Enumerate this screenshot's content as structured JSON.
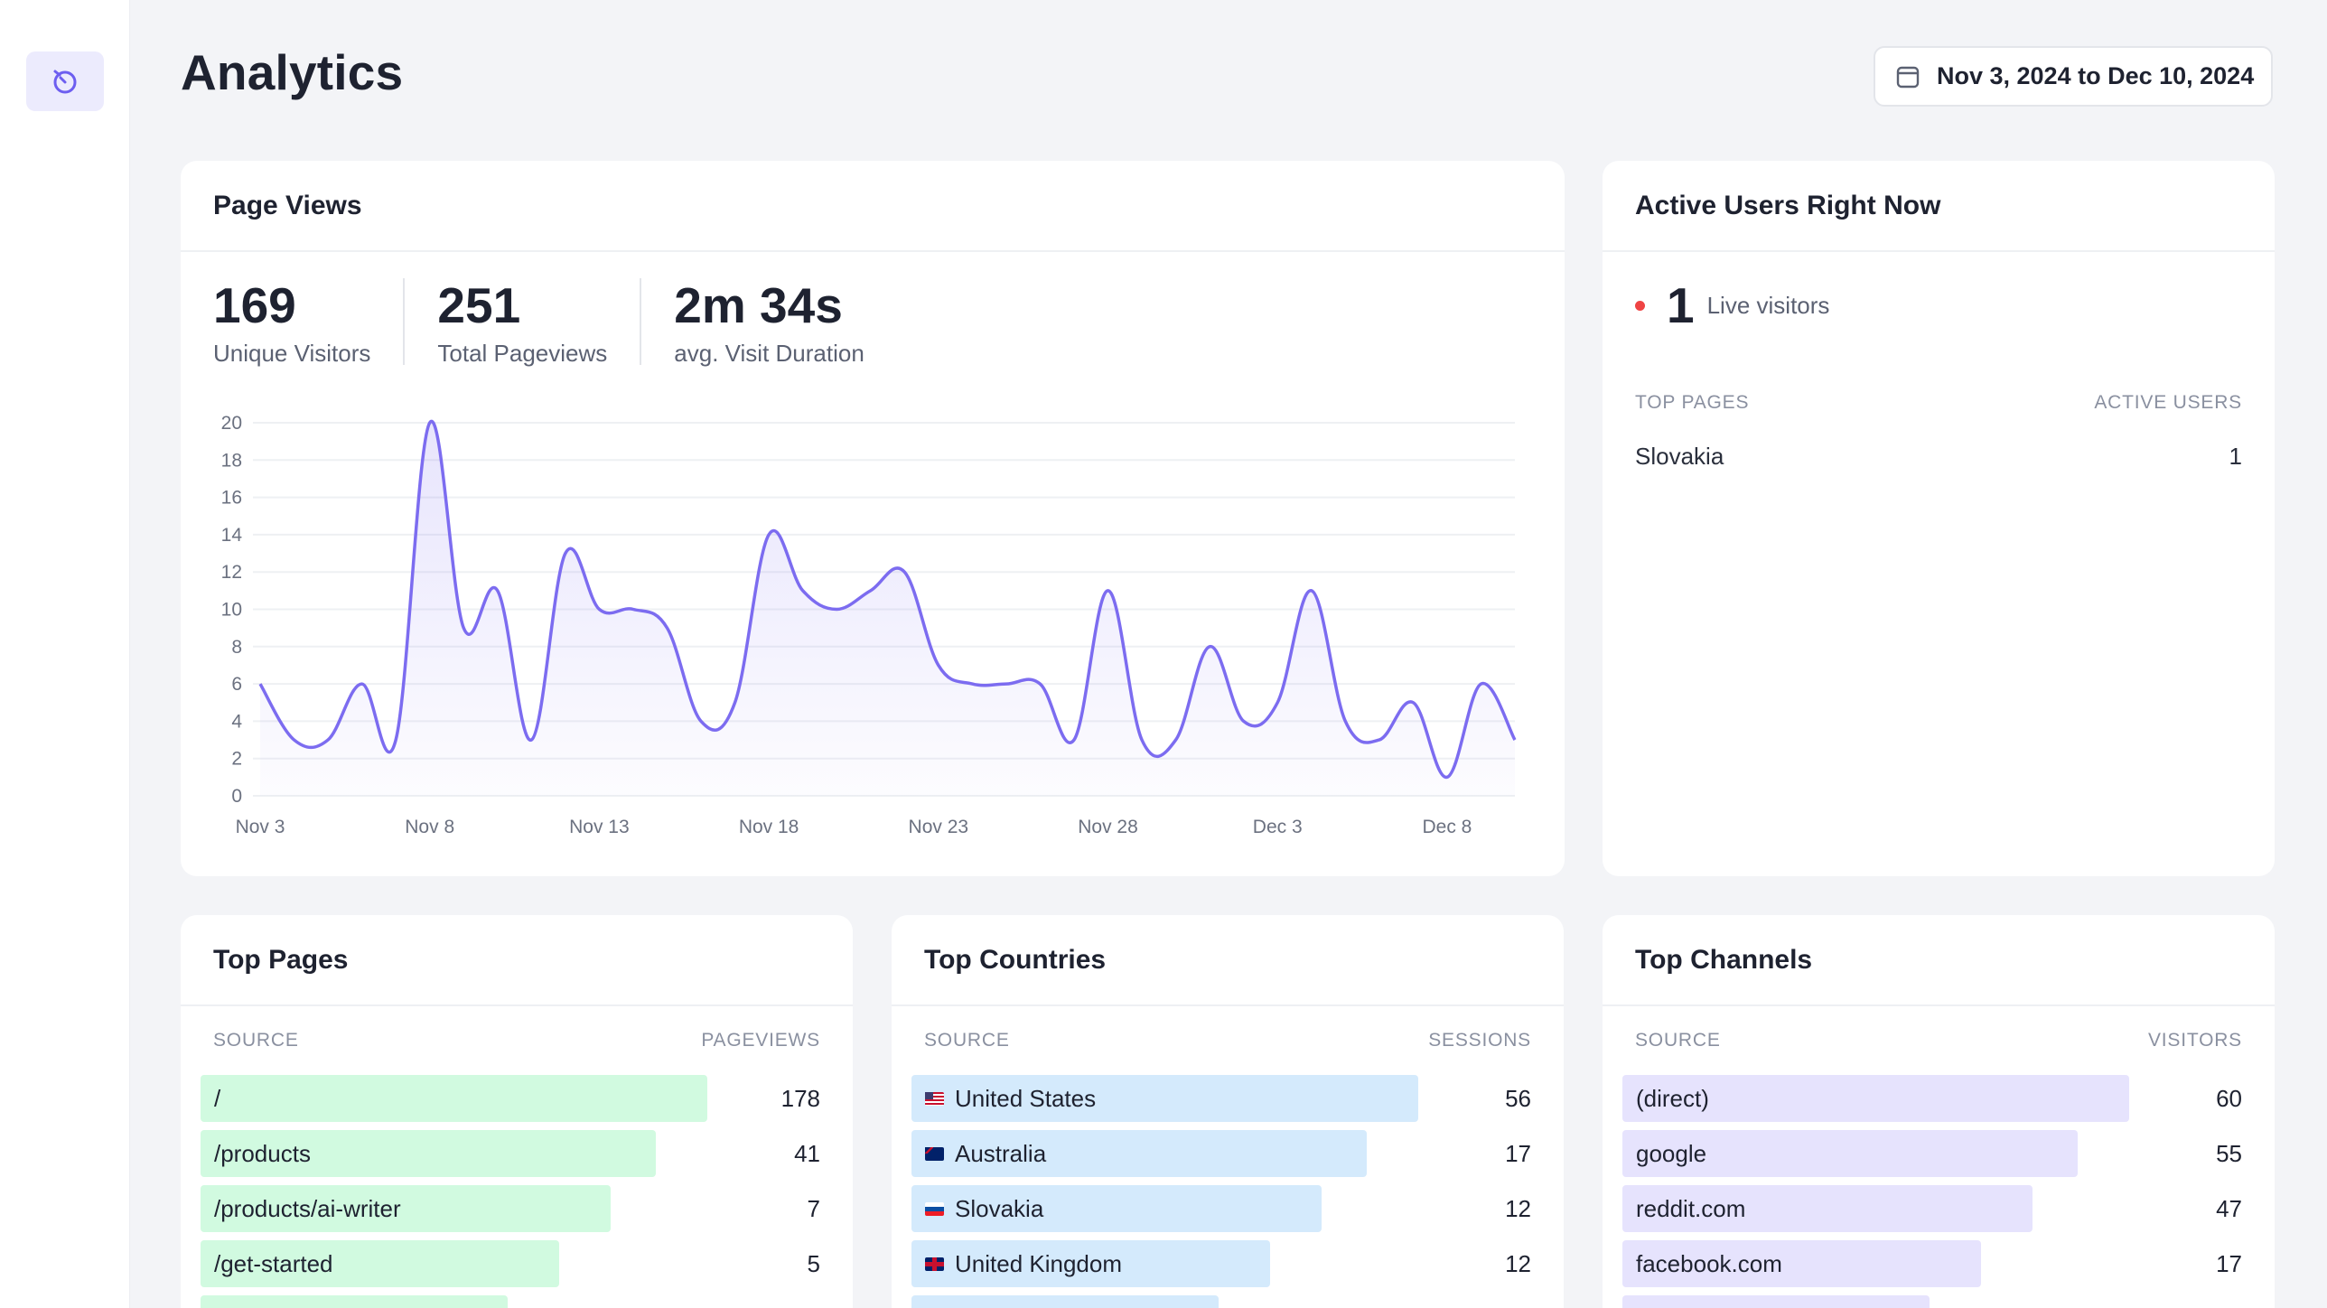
{
  "page": {
    "title": "Analytics"
  },
  "sidebar": {
    "items": [
      {
        "icon": "analytics-gauge-icon",
        "active": true
      }
    ]
  },
  "date_range": {
    "label": "Nov 3, 2024 to Dec 10, 2024",
    "icon": "calendar-icon"
  },
  "colors": {
    "accent": "#7c6cf0",
    "green_bar": "#d1fae0",
    "blue_bar": "#d4eafc",
    "purple_bar": "#e6e3fd",
    "live": "#ef4444"
  },
  "page_views": {
    "title": "Page Views",
    "stats": [
      {
        "value": "169",
        "label": "Unique Visitors"
      },
      {
        "value": "251",
        "label": "Total Pageviews"
      },
      {
        "value": "2m 34s",
        "label": "avg. Visit Duration"
      }
    ]
  },
  "chart_data": {
    "type": "area",
    "x": [
      "Nov 3",
      "Nov 4",
      "Nov 5",
      "Nov 6",
      "Nov 7",
      "Nov 8",
      "Nov 9",
      "Nov 10",
      "Nov 11",
      "Nov 12",
      "Nov 13",
      "Nov 14",
      "Nov 15",
      "Nov 16",
      "Nov 17",
      "Nov 18",
      "Nov 19",
      "Nov 20",
      "Nov 21",
      "Nov 22",
      "Nov 23",
      "Nov 24",
      "Nov 25",
      "Nov 26",
      "Nov 27",
      "Nov 28",
      "Nov 29",
      "Nov 30",
      "Dec 1",
      "Dec 2",
      "Dec 3",
      "Dec 4",
      "Dec 5",
      "Dec 6",
      "Dec 7",
      "Dec 8",
      "Dec 9",
      "Dec 10"
    ],
    "values": [
      6,
      3,
      3,
      6,
      3,
      20,
      9,
      11,
      3,
      13,
      10,
      10,
      9,
      4,
      5,
      14,
      11,
      10,
      11,
      12,
      7,
      6,
      6,
      6,
      3,
      11,
      3,
      3,
      8,
      4,
      5,
      11,
      4,
      3,
      5,
      1,
      6,
      3
    ],
    "xticks": [
      "Nov 3",
      "Nov 8",
      "Nov 13",
      "Nov 18",
      "Nov 23",
      "Nov 28",
      "Dec 3",
      "Dec 8"
    ],
    "yticks": [
      "0",
      "2",
      "4",
      "6",
      "8",
      "10",
      "12",
      "14",
      "16",
      "18",
      "20"
    ],
    "ylim": [
      0,
      20
    ],
    "grid": true,
    "title": "",
    "xlabel": "",
    "ylabel": ""
  },
  "active_users": {
    "title": "Active Users Right Now",
    "count": "1",
    "count_label": "Live visitors",
    "col_left": "Top pages",
    "col_right": "Active users",
    "rows": [
      {
        "name": "Slovakia",
        "value": "1"
      }
    ]
  },
  "top_pages": {
    "title": "Top Pages",
    "col_left": "Source",
    "col_right": "Pageviews",
    "rows": [
      {
        "name": "/",
        "value": "178",
        "fraction": 0.89
      },
      {
        "name": "/products",
        "value": "41",
        "fraction": 0.8
      },
      {
        "name": "/products/ai-writer",
        "value": "7",
        "fraction": 0.72
      },
      {
        "name": "/get-started",
        "value": "5",
        "fraction": 0.63
      },
      {
        "name": "",
        "value": "",
        "fraction": 0.54
      }
    ]
  },
  "top_countries": {
    "title": "Top Countries",
    "col_left": "Source",
    "col_right": "Sessions",
    "rows": [
      {
        "name": "United States",
        "flag": "us",
        "value": "56",
        "fraction": 0.89
      },
      {
        "name": "Australia",
        "flag": "au",
        "value": "17",
        "fraction": 0.8
      },
      {
        "name": "Slovakia",
        "flag": "sk",
        "value": "12",
        "fraction": 0.72
      },
      {
        "name": "United Kingdom",
        "flag": "uk",
        "value": "12",
        "fraction": 0.63
      },
      {
        "name": "",
        "flag": "",
        "value": "",
        "fraction": 0.54
      }
    ]
  },
  "top_channels": {
    "title": "Top Channels",
    "col_left": "Source",
    "col_right": "Visitors",
    "rows": [
      {
        "name": "(direct)",
        "value": "60",
        "fraction": 0.89
      },
      {
        "name": "google",
        "value": "55",
        "fraction": 0.8
      },
      {
        "name": "reddit.com",
        "value": "47",
        "fraction": 0.72
      },
      {
        "name": "facebook.com",
        "value": "17",
        "fraction": 0.63
      },
      {
        "name": "",
        "value": "",
        "fraction": 0.54
      }
    ]
  }
}
